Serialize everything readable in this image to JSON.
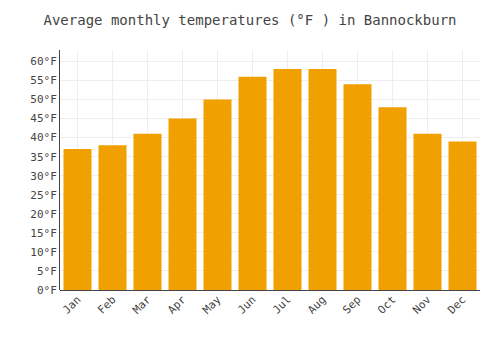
{
  "chart_data": {
    "type": "bar",
    "title": "Average monthly temperatures (°F ) in Bannockburn",
    "categories": [
      "Jan",
      "Feb",
      "Mar",
      "Apr",
      "May",
      "Jun",
      "Jul",
      "Aug",
      "Sep",
      "Oct",
      "Nov",
      "Dec"
    ],
    "values": [
      37,
      38,
      41,
      45,
      50,
      56,
      58,
      58,
      54,
      48,
      41,
      39
    ],
    "color": "#F0A000",
    "ylim": [
      0,
      63
    ],
    "yticks": [
      {
        "value": 0,
        "label": "0°F"
      },
      {
        "value": 5,
        "label": "5°F"
      },
      {
        "value": 10,
        "label": "10°F"
      },
      {
        "value": 15,
        "label": "15°F"
      },
      {
        "value": 20,
        "label": "20°F"
      },
      {
        "value": 25,
        "label": "25°F"
      },
      {
        "value": 30,
        "label": "30°F"
      },
      {
        "value": 35,
        "label": "35°F"
      },
      {
        "value": 40,
        "label": "40°F"
      },
      {
        "value": 45,
        "label": "45°F"
      },
      {
        "value": 50,
        "label": "50°F"
      },
      {
        "value": 55,
        "label": "55°F"
      },
      {
        "value": 60,
        "label": "60°F"
      }
    ],
    "grid": true
  }
}
